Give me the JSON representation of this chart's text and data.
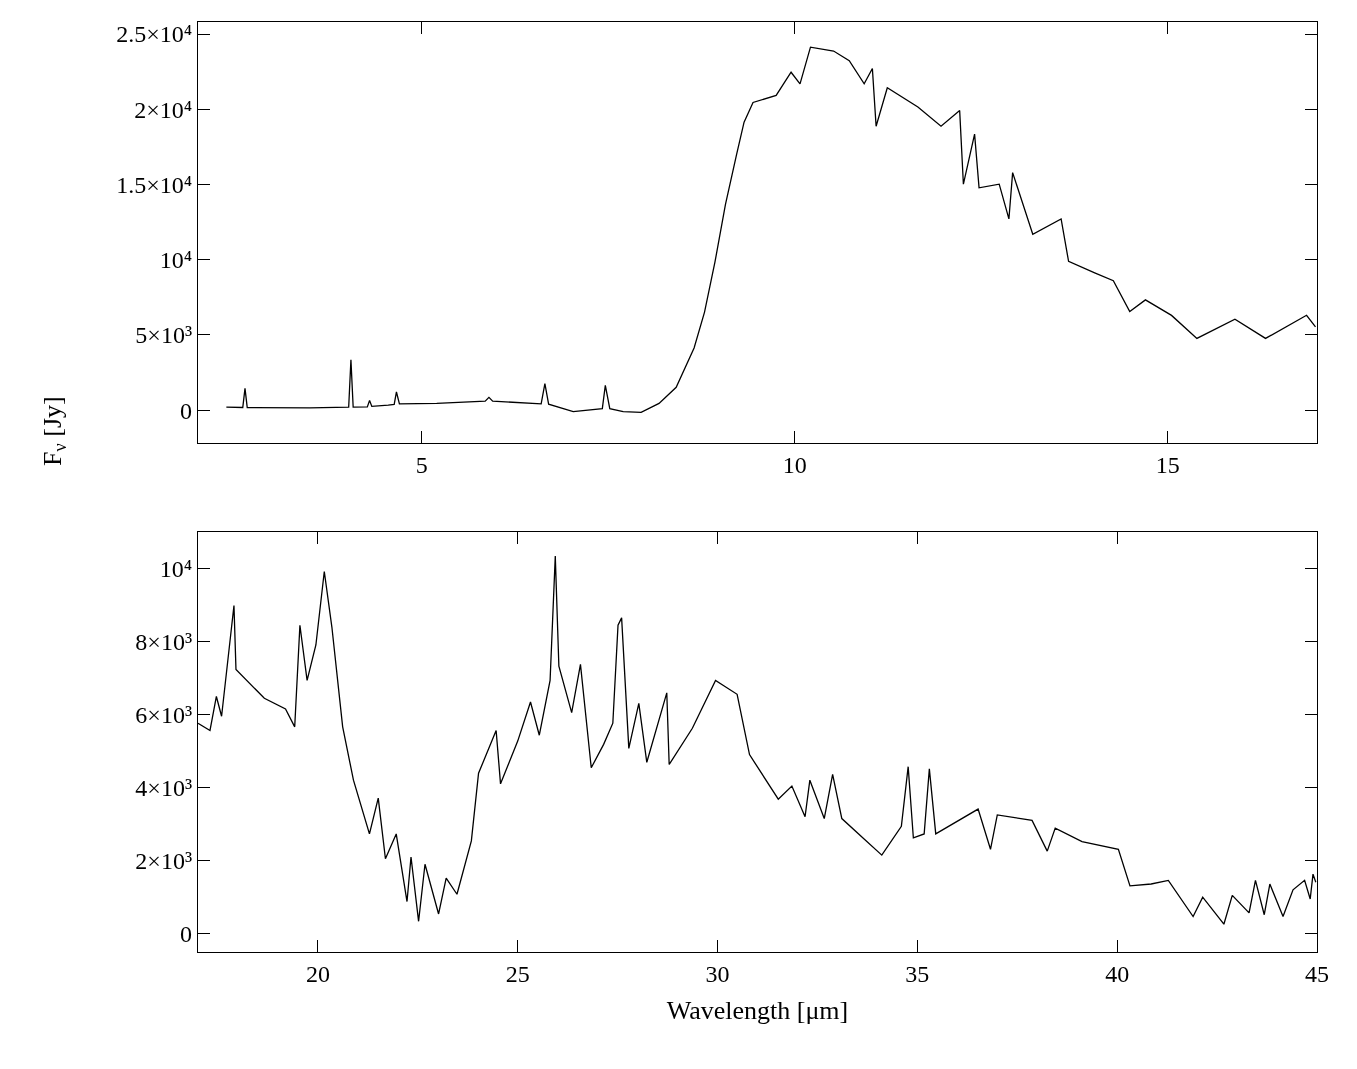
{
  "chart_data": [
    {
      "type": "line",
      "ylabel": "F$_{ν}$ [Jy]",
      "xlim": [
        2,
        17
      ],
      "xticks": [
        5,
        10,
        15
      ],
      "ylim": [
        -2200,
        25800
      ],
      "yticks": [
        0,
        {
          "value": 5000,
          "label": "5×10³"
        },
        {
          "value": 10000,
          "label": "10⁴"
        },
        {
          "value": 15000,
          "label": "1.5×10⁴"
        },
        {
          "value": 20000,
          "label": "2×10⁴"
        },
        {
          "value": 25000,
          "label": "2.5×10⁴"
        }
      ],
      "marker": "none",
      "line_style": "solid",
      "series": [
        {
          "color": "#000000",
          "x": [
            2.38,
            2.6,
            2.63,
            2.66,
            3.5,
            4.02,
            4.05,
            4.08,
            4.27,
            4.3,
            4.33,
            4.55,
            4.63,
            4.66,
            4.7,
            5.2,
            5.85,
            5.9,
            5.95,
            6.6,
            6.65,
            6.7,
            7.03,
            7.42,
            7.46,
            7.52,
            7.7,
            7.94,
            8.18,
            8.41,
            8.65,
            8.79,
            8.93,
            9.07,
            9.22,
            9.32,
            9.39,
            9.44,
            9.75,
            9.95,
            10.07,
            10.21,
            10.52,
            10.73,
            10.93,
            11.04,
            11.09,
            11.24,
            11.65,
            11.96,
            12.21,
            12.26,
            12.41,
            12.47,
            12.74,
            12.87,
            12.92,
            13.19,
            13.57,
            13.67,
            14.02,
            14.27,
            14.49,
            14.7,
            15.05,
            15.39,
            15.9,
            16.31,
            16.86,
            16.98
          ],
          "values": [
            210,
            180,
            1450,
            180,
            150,
            200,
            3350,
            200,
            220,
            650,
            250,
            330,
            380,
            1210,
            420,
            450,
            600,
            850,
            600,
            420,
            1760,
            400,
            -90,
            100,
            1650,
            100,
            -90,
            -150,
            450,
            1520,
            4140,
            6520,
            9850,
            13670,
            17000,
            19140,
            19900,
            20450,
            20920,
            22460,
            21690,
            24130,
            23870,
            23230,
            21690,
            22710,
            18870,
            21430,
            20150,
            18870,
            19910,
            15020,
            18350,
            14780,
            15020,
            12710,
            15790,
            11690,
            12710,
            9890,
            9130,
            8610,
            6560,
            7330,
            6300,
            4770,
            6050,
            4770,
            6310,
            5530
          ]
        }
      ]
    },
    {
      "type": "line",
      "xlabel": "Wavelength [μm]",
      "xlim": [
        17,
        45
      ],
      "xticks": [
        20,
        25,
        30,
        35,
        40,
        45
      ],
      "ylim": [
        -500,
        11000
      ],
      "yticks": [
        0,
        {
          "value": 2000,
          "label": "2×10³"
        },
        {
          "value": 4000,
          "label": "4×10³"
        },
        {
          "value": 6000,
          "label": "6×10³"
        },
        {
          "value": 8000,
          "label": "8×10³"
        },
        {
          "value": 10000,
          "label": "10⁴"
        }
      ],
      "marker": "none",
      "line_style": "solid",
      "series": [
        {
          "color": "#000000",
          "x": [
            17.0,
            17.3,
            17.46,
            17.59,
            17.9,
            17.95,
            18.66,
            19.19,
            19.42,
            19.55,
            19.73,
            19.95,
            20.16,
            20.35,
            20.62,
            20.89,
            21.29,
            21.51,
            21.69,
            21.96,
            22.23,
            22.33,
            22.52,
            22.68,
            23.02,
            23.21,
            23.48,
            23.84,
            24.02,
            24.46,
            24.57,
            25.0,
            25.32,
            25.54,
            25.81,
            25.94,
            26.03,
            26.35,
            26.57,
            26.84,
            27.15,
            27.38,
            27.51,
            27.6,
            27.78,
            28.03,
            28.23,
            28.73,
            28.79,
            29.37,
            29.95,
            30.49,
            30.8,
            31.52,
            31.86,
            32.19,
            32.31,
            32.67,
            32.88,
            33.11,
            33.64,
            34.11,
            34.6,
            34.77,
            34.9,
            35.17,
            35.3,
            35.46,
            36.52,
            36.83,
            37.0,
            37.87,
            38.25,
            38.45,
            39.12,
            40.03,
            40.32,
            40.85,
            41.28,
            41.9,
            42.14,
            42.67,
            42.88,
            43.3,
            43.46,
            43.68,
            43.82,
            44.15,
            44.4,
            44.69,
            44.83,
            44.9,
            44.97
          ],
          "values": [
            5760,
            5560,
            6490,
            5950,
            8980,
            7230,
            6440,
            6150,
            5660,
            8440,
            6930,
            7900,
            9910,
            8390,
            5660,
            4200,
            2730,
            3710,
            2050,
            2730,
            880,
            2100,
            340,
            1900,
            540,
            1520,
            1080,
            2540,
            4390,
            5560,
            4100,
            5270,
            6340,
            5430,
            6930,
            10330,
            7320,
            6050,
            7370,
            4540,
            5180,
            5760,
            8440,
            8640,
            5070,
            6300,
            4690,
            6590,
            4630,
            5620,
            6930,
            6550,
            4900,
            3680,
            4040,
            3200,
            4200,
            3150,
            4360,
            3150,
            2620,
            2150,
            2940,
            4570,
            2620,
            2730,
            4510,
            2730,
            3410,
            2310,
            3250,
            3100,
            2260,
            2890,
            2520,
            2310,
            1310,
            1360,
            1460,
            470,
            1000,
            260,
            1050,
            570,
            1460,
            520,
            1360,
            470,
            1200,
            1460,
            950,
            1630,
            1410
          ]
        }
      ]
    }
  ]
}
